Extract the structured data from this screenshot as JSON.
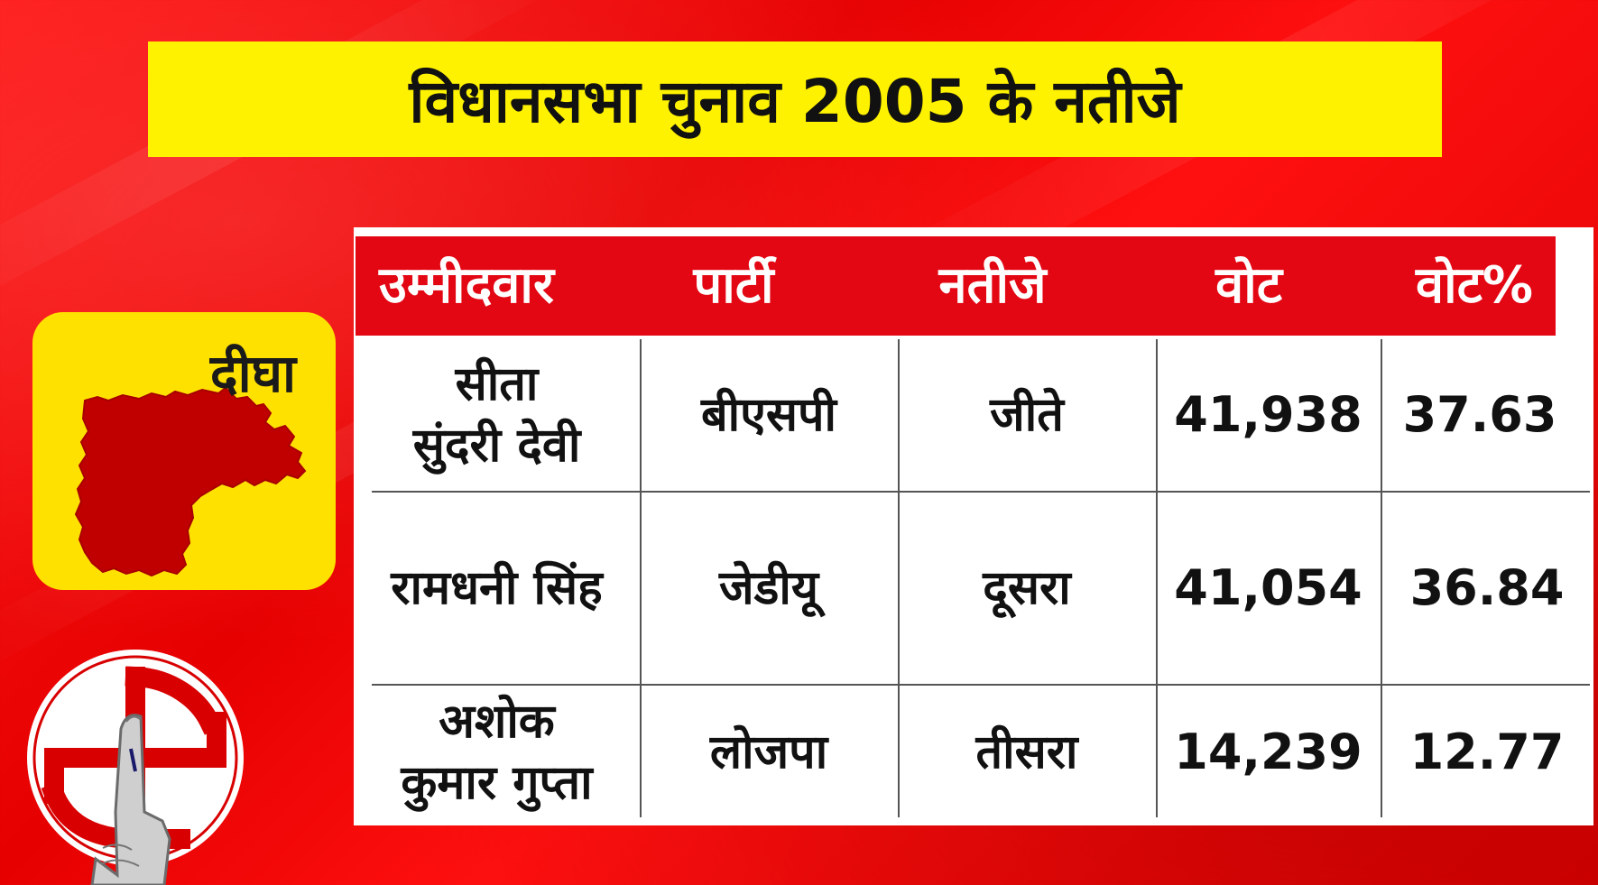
{
  "title": "विधानसभा चुनाव 2005 के नतीजे",
  "constituency": "दीघा",
  "colors": {
    "background": "#e60000",
    "title_bg": "#fff200",
    "card_bg": "#ffe100",
    "map_fill": "#c00000",
    "table_header_bg": "#e30613",
    "table_bg": "#ffffff"
  },
  "icons": {
    "constituency_map": "district-map-icon",
    "logo": "election-commission-logo-icon"
  },
  "table": {
    "headers": [
      "उम्मीदवार",
      "पार्टी",
      "नतीजे",
      "वोट",
      "वोट%"
    ],
    "rows": [
      {
        "candidate_line1": "सीता",
        "candidate_line2": "सुंदरी देवी",
        "party": "बीएसपी",
        "result": "जीते",
        "votes": "41,938",
        "vote_pct": "37.63"
      },
      {
        "candidate_line1": "रामधनी सिंह",
        "candidate_line2": "",
        "party": "जेडीयू",
        "result": "दूसरा",
        "votes": "41,054",
        "vote_pct": "36.84"
      },
      {
        "candidate_line1": "अशोक",
        "candidate_line2": "कुमार गुप्ता",
        "party": "लोजपा",
        "result": "तीसरा",
        "votes": "14,239",
        "vote_pct": "12.77"
      }
    ]
  }
}
